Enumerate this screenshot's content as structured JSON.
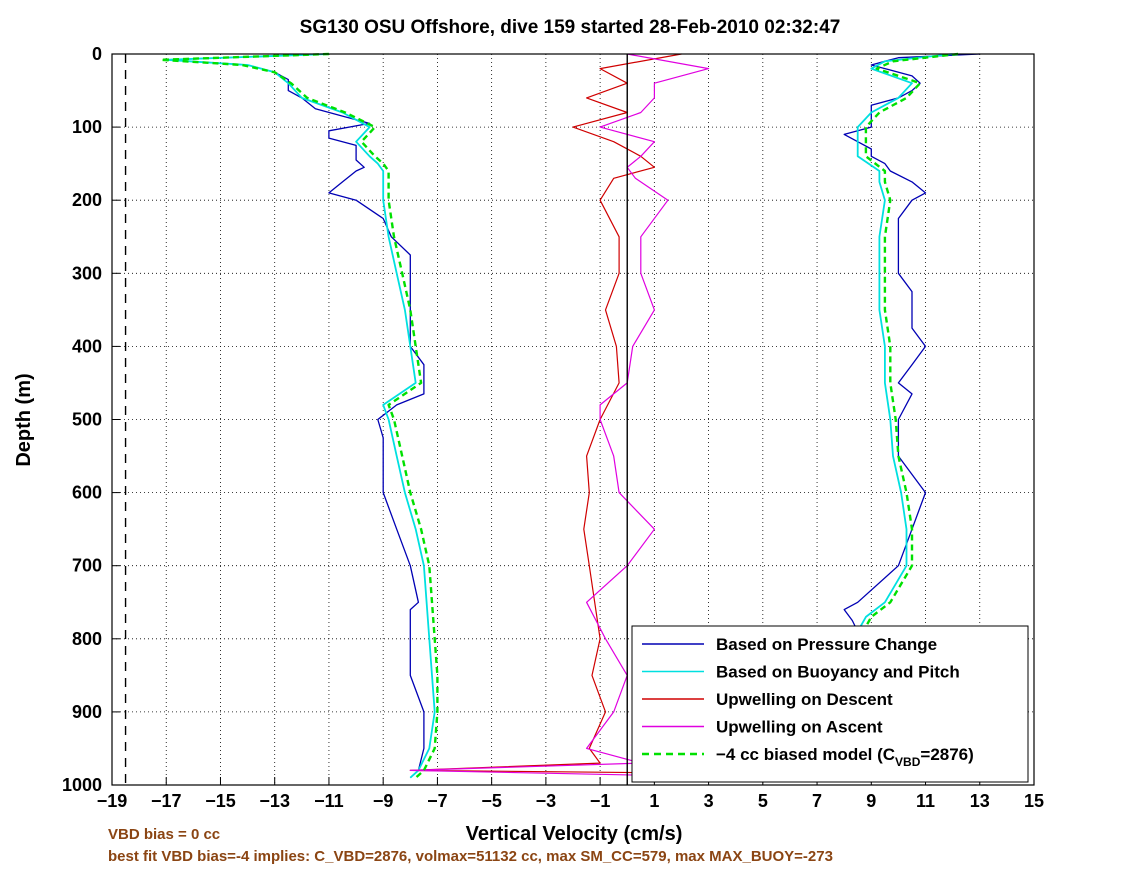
{
  "chart_data": {
    "type": "line",
    "title": "SG130 OSU Offshore, dive 159 started 28-Feb-2010 02:32:47",
    "xlabel": "Vertical Velocity (cm/s)",
    "ylabel": "Depth (m)",
    "xlim": [
      -19,
      15
    ],
    "ylim": [
      0,
      1000
    ],
    "y_reversed": true,
    "grid": true,
    "legend_placement": "bottom-right",
    "x_ticks": [
      "-19",
      "-17",
      "-15",
      "-13",
      "-11",
      "-9",
      "-7",
      "-5",
      "-3",
      "-1",
      "1",
      "3",
      "5",
      "7",
      "9",
      "11",
      "13",
      "15"
    ],
    "y_ticks": [
      "0",
      "100",
      "200",
      "300",
      "400",
      "500",
      "600",
      "700",
      "800",
      "900",
      "1000"
    ],
    "reference_lines": [
      {
        "x": -18.5,
        "style": "dashed",
        "color": "#000000"
      },
      {
        "x": 0,
        "style": "solid",
        "color": "#000000"
      }
    ],
    "legend": [
      {
        "label": "Based on Pressure Change",
        "color": "#0000b4",
        "style": "solid"
      },
      {
        "label": "Based on Buoyancy and Pitch",
        "color": "#00e0e0",
        "style": "solid"
      },
      {
        "label": "Upwelling on Descent",
        "color": "#d00000",
        "style": "solid"
      },
      {
        "label": "Upwelling on Ascent",
        "color": "#e000e0",
        "style": "solid"
      },
      {
        "label_pre": "−4 cc biased model (C",
        "label_sub": "VBD",
        "label_post": "=2876)",
        "color": "#00e000",
        "style": "dashed"
      }
    ],
    "series": [
      {
        "color": "#0000b4",
        "width": 1.3,
        "segments": [
          {
            "depth": [
              0,
              8,
              15,
              25,
              35,
              50,
              60,
              75,
              85,
              95,
              105,
              115,
              125,
              135,
              145,
              155,
              160,
              175,
              190,
              200,
              225,
              250,
              275,
              300,
              325,
              350,
              375,
              400,
              425,
              450,
              465,
              480,
              500,
              525,
              550,
              600,
              650,
              700,
              750,
              760,
              800,
              850,
              900,
              950,
              980,
              990
            ],
            "v": [
              -11,
              -17,
              -14,
              -13,
              -12.5,
              -12.5,
              -12,
              -11.5,
              -10.5,
              -9.5,
              -11,
              -11,
              -10,
              -10,
              -10,
              -9.7,
              -10,
              -10.5,
              -11,
              -10,
              -9,
              -8.7,
              -8,
              -8,
              -8,
              -8,
              -8,
              -8,
              -7.5,
              -7.5,
              -7.5,
              -8.5,
              -9.2,
              -9,
              -9,
              -9,
              -8.5,
              -8,
              -7.7,
              -8,
              -8,
              -8,
              -7.5,
              -7.5,
              -7.7,
              -8
            ]
          },
          {
            "depth": [
              0,
              5,
              10,
              15,
              20,
              30,
              40,
              50,
              60,
              70,
              80,
              90,
              100,
              110,
              120,
              130,
              140,
              150,
              160,
              175,
              190,
              200,
              225,
              250,
              275,
              300,
              325,
              350,
              375,
              400,
              425,
              450,
              465,
              500,
              525,
              550,
              600,
              650,
              700,
              750,
              760,
              775,
              790
            ],
            "v": [
              13,
              10,
              9.5,
              9,
              9.5,
              10.5,
              10.8,
              10.5,
              10,
              9,
              9,
              9,
              9,
              8,
              8.5,
              9,
              9,
              9.5,
              9.7,
              10.5,
              11,
              10.5,
              10,
              10,
              10,
              10,
              10.5,
              10.5,
              10.5,
              11,
              10.5,
              10,
              10.5,
              10,
              10,
              10,
              11,
              10.5,
              10,
              8.5,
              8,
              8.3,
              8.5
            ]
          }
        ]
      },
      {
        "color": "#00e0e0",
        "width": 1.8,
        "segments": [
          {
            "depth": [
              0,
              8,
              15,
              25,
              40,
              60,
              80,
              100,
              120,
              140,
              150,
              160,
              175,
              200,
              250,
              300,
              350,
              400,
              450,
              480,
              500,
              550,
              600,
              650,
              700,
              750,
              800,
              850,
              900,
              950,
              980,
              990
            ],
            "v": [
              -11,
              -17,
              -14,
              -13,
              -12.5,
              -12,
              -10.5,
              -9.5,
              -10,
              -9.5,
              -9.2,
              -9,
              -9,
              -9,
              -8.8,
              -8.5,
              -8.2,
              -8,
              -7.8,
              -9,
              -8.8,
              -8.5,
              -8.2,
              -7.8,
              -7.5,
              -7.4,
              -7.3,
              -7.2,
              -7.1,
              -7.3,
              -7.7,
              -8
            ]
          },
          {
            "depth": [
              0,
              10,
              20,
              40,
              60,
              80,
              100,
              120,
              140,
              160,
              175,
              200,
              250,
              300,
              350,
              400,
              450,
              500,
              550,
              600,
              650,
              700,
              750,
              770,
              790
            ],
            "v": [
              12,
              9.5,
              9,
              10.5,
              10,
              9,
              8.5,
              8.5,
              8.5,
              9.3,
              9.3,
              9.5,
              9.3,
              9.3,
              9.3,
              9.5,
              9.5,
              9.7,
              9.8,
              10.1,
              10.3,
              10.3,
              9.5,
              8.8,
              8.5
            ]
          }
        ]
      },
      {
        "color": "#d00000",
        "width": 1.2,
        "segments": [
          {
            "depth": [
              0,
              20,
              40,
              60,
              80,
              100,
              120,
              140,
              155,
              170,
              200,
              250,
              300,
              350,
              400,
              450,
              500,
              550,
              600,
              650,
              700,
              750,
              800,
              850,
              900,
              950,
              970,
              980,
              985,
              990
            ],
            "v": [
              2,
              -1,
              0,
              -1.5,
              0,
              -2,
              -0.5,
              0.5,
              1,
              -0.5,
              -1,
              -0.3,
              -0.3,
              -0.8,
              -0.4,
              -0.3,
              -1,
              -1.5,
              -1.4,
              -1.6,
              -1.4,
              -1.2,
              -1,
              -1.3,
              -0.8,
              -1.4,
              -1,
              -8,
              6,
              7
            ]
          }
        ]
      },
      {
        "color": "#e000e0",
        "width": 1.2,
        "segments": [
          {
            "depth": [
              0,
              20,
              40,
              60,
              80,
              100,
              120,
              140,
              155,
              170,
              200,
              250,
              300,
              350,
              400,
              450,
              480,
              500,
              550,
              600,
              650,
              700,
              750,
              800,
              850,
              900,
              950,
              970,
              980,
              990
            ],
            "v": [
              0,
              3,
              1,
              1,
              0.5,
              -1,
              1,
              0.5,
              0,
              0.3,
              1.5,
              0.5,
              0.5,
              1,
              0.2,
              0,
              -1,
              -1,
              -0.5,
              -0.3,
              1,
              0,
              -1.5,
              -0.8,
              0,
              -0.5,
              -1.5,
              0.5,
              -8,
              5
            ]
          }
        ]
      },
      {
        "color": "#00e000",
        "width": 2.4,
        "dash": "6,4",
        "segments": [
          {
            "depth": [
              0,
              8,
              15,
              25,
              40,
              60,
              80,
              100,
              120,
              140,
              150,
              160,
              175,
              200,
              250,
              300,
              350,
              400,
              450,
              480,
              500,
              550,
              600,
              650,
              700,
              750,
              800,
              850,
              900,
              950,
              980,
              990
            ],
            "v": [
              -11,
              -17.2,
              -14.2,
              -13,
              -12.4,
              -11.8,
              -10.4,
              -9.3,
              -9.8,
              -9.3,
              -9,
              -8.8,
              -8.8,
              -8.8,
              -8.6,
              -8.3,
              -8,
              -7.8,
              -7.6,
              -8.8,
              -8.6,
              -8.3,
              -8,
              -7.6,
              -7.3,
              -7.2,
              -7.1,
              -7,
              -7,
              -7.1,
              -7.5,
              -7.8
            ]
          },
          {
            "depth": [
              0,
              10,
              20,
              40,
              60,
              80,
              100,
              120,
              140,
              160,
              175,
              200,
              250,
              300,
              350,
              400,
              450,
              500,
              550,
              600,
              650,
              700,
              750,
              770,
              790
            ],
            "v": [
              12.2,
              9.8,
              9.2,
              10.8,
              10.3,
              9.3,
              8.8,
              8.8,
              8.8,
              9.5,
              9.5,
              9.7,
              9.5,
              9.5,
              9.5,
              9.7,
              9.7,
              9.9,
              10,
              10.3,
              10.5,
              10.5,
              9.7,
              9,
              8.7
            ]
          }
        ]
      }
    ]
  },
  "notes": {
    "line1": "VBD bias = 0 cc",
    "line2": "best fit VBD bias=-4 implies: C_VBD=2876, volmax=51132 cc, max SM_CC=579, max MAX_BUOY=-273"
  }
}
